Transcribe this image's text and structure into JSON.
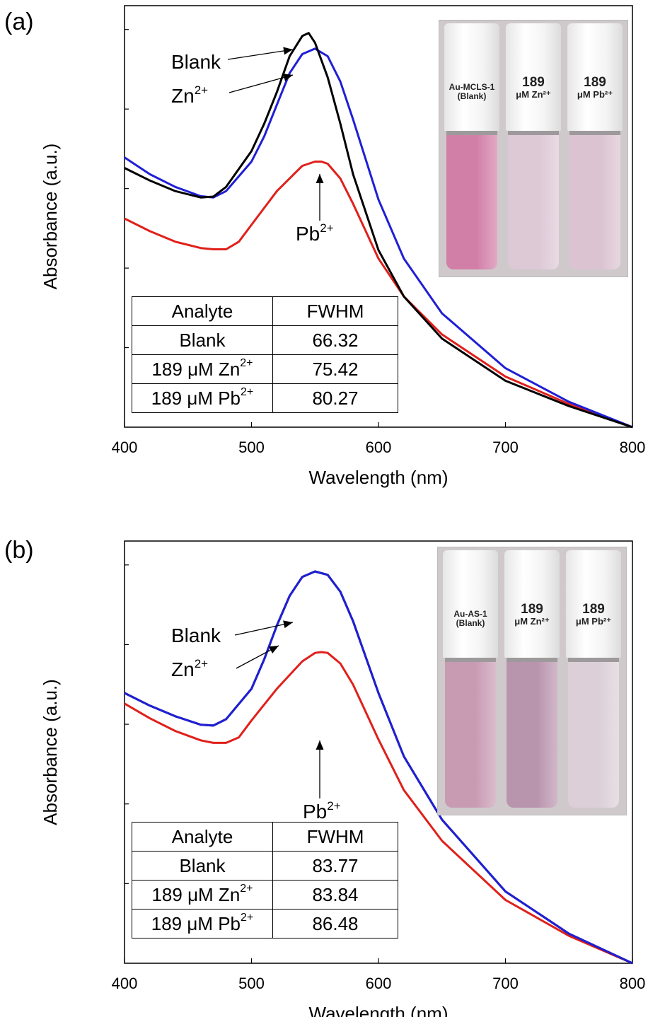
{
  "panels": [
    {
      "label": "(a)",
      "photo_caps": [
        {
          "line1": "Au-MCLS-1",
          "line2": "(Blank)"
        },
        {
          "line1": "189",
          "line2": "μM Zn²⁺"
        },
        {
          "line1": "189",
          "line2": "μM Pb²⁺"
        }
      ],
      "liquid_colors": [
        "#d27fa8",
        "#ddc8d6",
        "#dbc3d1"
      ],
      "annotations": {
        "blank": "Blank",
        "zn": "Zn",
        "zn_sup": "2+",
        "pb": "Pb",
        "pb_sup": "2+"
      },
      "table": {
        "headers": [
          "Analyte",
          "FWHM"
        ],
        "rows": [
          {
            "analyte": "Blank",
            "sup": "",
            "fwhm": "66.32"
          },
          {
            "analyte": "189 μM Zn",
            "sup": "2+",
            "fwhm": "75.42"
          },
          {
            "analyte": "189 μM Pb",
            "sup": "2+",
            "fwhm": "80.27"
          }
        ]
      }
    },
    {
      "label": "(b)",
      "photo_caps": [
        {
          "line1": "Au-AS-1",
          "line2": "(Blank)"
        },
        {
          "line1": "189",
          "line2": "μM Zn²⁺"
        },
        {
          "line1": "189",
          "line2": "μM Pb²⁺"
        }
      ],
      "liquid_colors": [
        "#c89bb3",
        "#b994ad",
        "#dccfd7"
      ],
      "annotations": {
        "blank": "Blank",
        "zn": "Zn",
        "zn_sup": "2+",
        "pb": "Pb",
        "pb_sup": "2+"
      },
      "table": {
        "headers": [
          "Analyte",
          "FWHM"
        ],
        "rows": [
          {
            "analyte": "Blank",
            "sup": "",
            "fwhm": "83.77"
          },
          {
            "analyte": "189 μM Zn",
            "sup": "2+",
            "fwhm": "83.84"
          },
          {
            "analyte": "189 μM Pb",
            "sup": "2+",
            "fwhm": "86.48"
          }
        ]
      }
    }
  ],
  "chart_data": [
    {
      "type": "line",
      "xlabel": "Wavelength (nm)",
      "ylabel": "Absorbance (a.u.)",
      "xlim": [
        400,
        800
      ],
      "ylim": [
        0,
        1.0
      ],
      "xticks": [
        400,
        500,
        600,
        700,
        800
      ],
      "series": [
        {
          "name": "Blank",
          "color": "#000000",
          "x": [
            400,
            420,
            440,
            460,
            470,
            480,
            500,
            510,
            520,
            530,
            540,
            545,
            550,
            560,
            570,
            580,
            600,
            620,
            650,
            700,
            750,
            800
          ],
          "y": [
            0.615,
            0.585,
            0.56,
            0.545,
            0.547,
            0.57,
            0.655,
            0.72,
            0.795,
            0.88,
            0.928,
            0.935,
            0.912,
            0.83,
            0.72,
            0.6,
            0.42,
            0.31,
            0.21,
            0.11,
            0.05,
            0.0
          ]
        },
        {
          "name": "Zn²⁺",
          "color": "#1f1fd6",
          "x": [
            400,
            420,
            440,
            460,
            470,
            480,
            500,
            510,
            520,
            530,
            540,
            550,
            560,
            570,
            580,
            600,
            620,
            650,
            700,
            750,
            800
          ],
          "y": [
            0.64,
            0.6,
            0.57,
            0.548,
            0.545,
            0.56,
            0.63,
            0.69,
            0.765,
            0.84,
            0.885,
            0.898,
            0.88,
            0.82,
            0.73,
            0.54,
            0.4,
            0.27,
            0.14,
            0.06,
            0.0
          ]
        },
        {
          "name": "Pb²⁺",
          "color": "#e0201b",
          "x": [
            400,
            420,
            440,
            460,
            470,
            480,
            490,
            500,
            520,
            540,
            550,
            555,
            560,
            570,
            580,
            600,
            620,
            650,
            700,
            750,
            800
          ],
          "y": [
            0.495,
            0.465,
            0.44,
            0.425,
            0.422,
            0.422,
            0.44,
            0.48,
            0.56,
            0.62,
            0.63,
            0.63,
            0.625,
            0.59,
            0.53,
            0.4,
            0.31,
            0.22,
            0.12,
            0.055,
            0.0
          ]
        }
      ]
    },
    {
      "type": "line",
      "xlabel": "Wavelength (nm)",
      "ylabel": "Absorbance (a.u.)",
      "xlim": [
        400,
        800
      ],
      "ylim": [
        0,
        1.0
      ],
      "xticks": [
        400,
        500,
        600,
        700,
        800
      ],
      "series": [
        {
          "name": "Blank",
          "color": "#000000",
          "x": [
            400,
            420,
            440,
            460,
            470,
            480,
            500,
            510,
            520,
            530,
            540,
            550,
            560,
            570,
            580,
            600,
            620,
            650,
            700,
            750,
            800
          ],
          "y": [
            0.64,
            0.61,
            0.585,
            0.565,
            0.563,
            0.578,
            0.65,
            0.72,
            0.8,
            0.87,
            0.915,
            0.928,
            0.92,
            0.88,
            0.81,
            0.64,
            0.49,
            0.34,
            0.17,
            0.07,
            0.0
          ]
        },
        {
          "name": "Zn²⁺",
          "color": "#1f1fd6",
          "x": [
            400,
            420,
            440,
            460,
            470,
            480,
            500,
            510,
            520,
            530,
            540,
            550,
            560,
            570,
            580,
            600,
            620,
            650,
            700,
            750,
            800
          ],
          "y": [
            0.64,
            0.61,
            0.585,
            0.565,
            0.563,
            0.578,
            0.65,
            0.72,
            0.8,
            0.87,
            0.915,
            0.928,
            0.92,
            0.88,
            0.81,
            0.64,
            0.49,
            0.34,
            0.17,
            0.07,
            0.0
          ]
        },
        {
          "name": "Pb²⁺",
          "color": "#e0201b",
          "x": [
            400,
            420,
            440,
            460,
            470,
            480,
            490,
            500,
            520,
            540,
            550,
            555,
            560,
            570,
            580,
            600,
            620,
            650,
            700,
            750,
            800
          ],
          "y": [
            0.615,
            0.58,
            0.55,
            0.528,
            0.522,
            0.522,
            0.535,
            0.575,
            0.65,
            0.715,
            0.735,
            0.737,
            0.735,
            0.71,
            0.66,
            0.53,
            0.41,
            0.29,
            0.15,
            0.065,
            0.0
          ]
        }
      ]
    }
  ]
}
